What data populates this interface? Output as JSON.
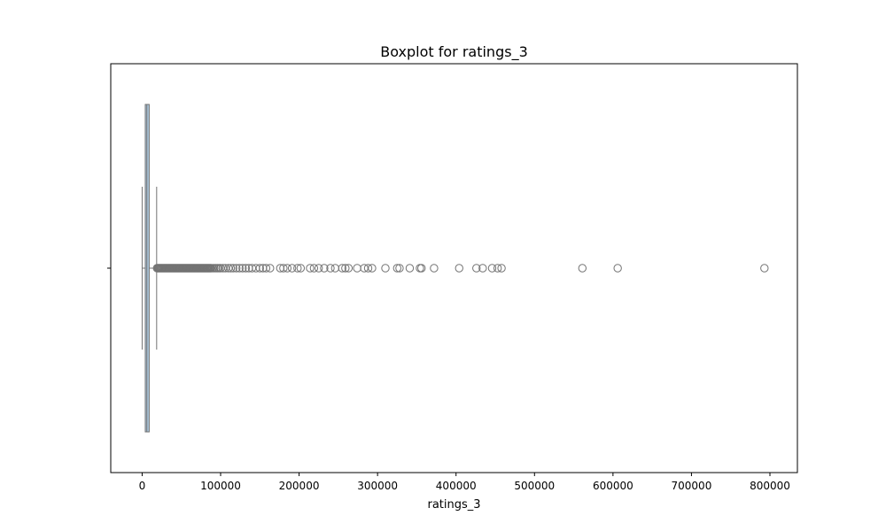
{
  "chart_data": {
    "type": "box",
    "title": "Boxplot for ratings_3",
    "xlabel": "ratings_3",
    "ylabel": "",
    "orientation": "horizontal",
    "xlim": [
      -40000,
      835000
    ],
    "x_ticks": [
      0,
      100000,
      200000,
      300000,
      400000,
      500000,
      600000,
      700000,
      800000
    ],
    "x_tick_labels": [
      "0",
      "100000",
      "200000",
      "300000",
      "400000",
      "500000",
      "600000",
      "700000",
      "800000"
    ],
    "grid": false,
    "box": {
      "whisker_low": 0,
      "q1": 4000,
      "median": 6000,
      "q3": 9000,
      "whisker_high": 18500
    },
    "outliers": [
      19000,
      20000,
      21000,
      22000,
      23000,
      24000,
      25000,
      26000,
      27000,
      28000,
      29000,
      30000,
      31000,
      32000,
      33000,
      34000,
      35000,
      36000,
      37000,
      38000,
      39000,
      40000,
      41000,
      42000,
      43000,
      44000,
      45000,
      46000,
      47000,
      48000,
      49000,
      50000,
      51000,
      52000,
      53000,
      54000,
      55000,
      56000,
      57000,
      58000,
      59000,
      60000,
      61000,
      62000,
      63000,
      64000,
      65000,
      66000,
      67000,
      68000,
      69000,
      70000,
      71000,
      72000,
      73000,
      74000,
      75000,
      76000,
      77000,
      78000,
      79000,
      80000,
      81000,
      82000,
      83000,
      84000,
      85000,
      86000,
      87000,
      88000,
      90000,
      92000,
      94000,
      96000,
      98000,
      100000,
      103000,
      106000,
      110000,
      113000,
      116000,
      120000,
      124000,
      128000,
      132000,
      136000,
      140000,
      145000,
      150000,
      154000,
      158000,
      163000,
      176000,
      180000,
      185000,
      191000,
      198000,
      202000,
      214000,
      219000,
      225000,
      232000,
      240000,
      246000,
      255000,
      259000,
      263000,
      274000,
      283000,
      288000,
      293000,
      310000,
      325000,
      328000,
      341000,
      354000,
      356000,
      372000,
      404000,
      426000,
      434000,
      446000,
      453000,
      458000,
      561000,
      606000,
      793000
    ],
    "colors": {
      "box_fill": "#a9c6dd",
      "box_edge": "#737373",
      "outlier_edge": "#737373",
      "frame": "#000000"
    }
  }
}
